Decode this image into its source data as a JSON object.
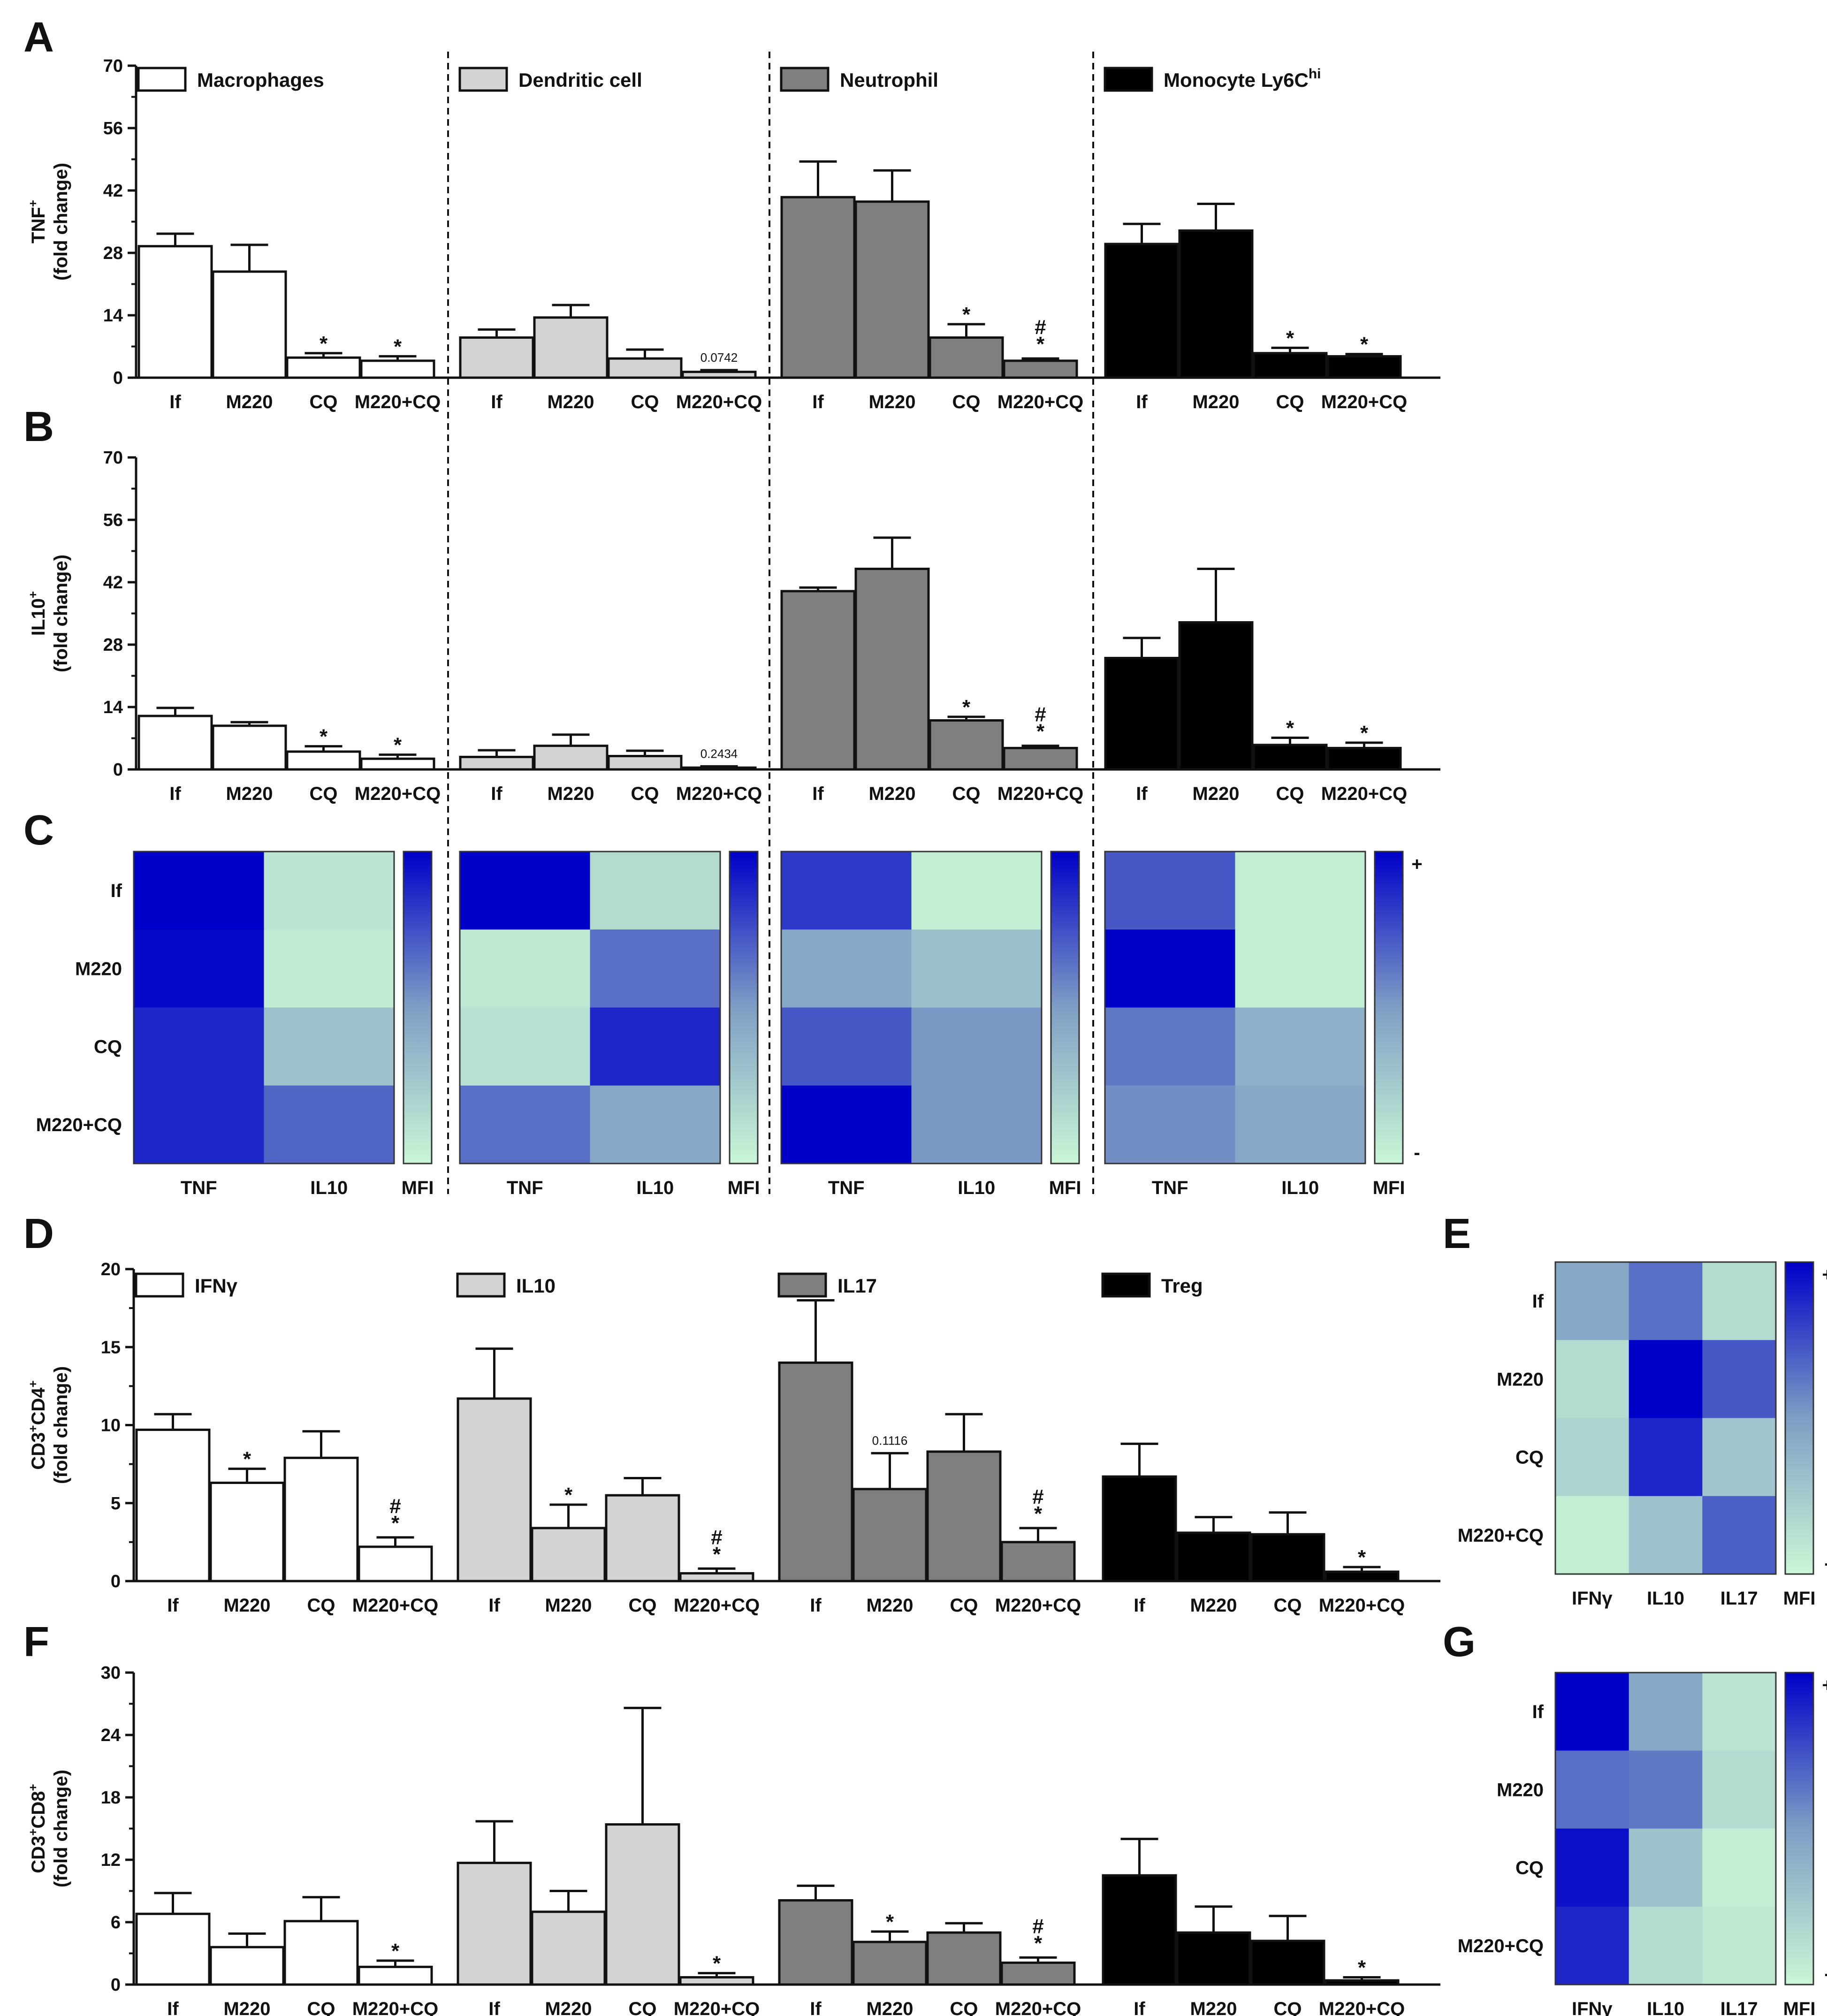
{
  "panel_letters": [
    "A",
    "B",
    "C",
    "D",
    "E",
    "F",
    "G"
  ],
  "groups": [
    "If",
    "M220",
    "CQ",
    "M220+CQ"
  ],
  "colors": {
    "white": "#ffffff",
    "light": "#d3d3d3",
    "gray": "#7f7f7f",
    "black": "#000000",
    "hm_low": "#c9f7d6",
    "hm_mid": "#7f9ec4",
    "hm_high": "#0000c8"
  },
  "chart_data": [
    {
      "id": "A",
      "type": "bar",
      "ylabel_main": "TNF",
      "ylabel_sup": "+",
      "ylabel_sub": "(fold change)",
      "ylim": [
        0,
        70
      ],
      "yticks": [
        0,
        14,
        28,
        42,
        56,
        70
      ],
      "categories": [
        "If",
        "M220",
        "CQ",
        "M220+CQ"
      ],
      "series": [
        {
          "name": "Macrophages",
          "values": [
            29.5,
            23.8,
            4.5,
            3.8
          ],
          "errors": [
            2.8,
            6.0,
            1.0,
            1.0
          ],
          "annotations": [
            "",
            "",
            "*",
            "*"
          ]
        },
        {
          "name": "Dendritic cell",
          "values": [
            9.0,
            13.5,
            4.3,
            1.3
          ],
          "errors": [
            1.8,
            2.8,
            2.0,
            0.4
          ],
          "annotations": [
            "",
            "",
            "",
            "0.0742"
          ]
        },
        {
          "name": "Neutrophil",
          "values": [
            40.5,
            39.5,
            9.0,
            3.8
          ],
          "errors": [
            8.0,
            7.0,
            3.0,
            0.5
          ],
          "annotations": [
            "",
            "",
            "*",
            "#\n*"
          ]
        },
        {
          "name": "Monocyte Ly6C",
          "name_sup": "hi",
          "values": [
            30.0,
            33.0,
            5.5,
            4.8
          ],
          "errors": [
            4.5,
            6.0,
            1.2,
            0.5
          ],
          "annotations": [
            "",
            "",
            "*",
            "*"
          ]
        }
      ]
    },
    {
      "id": "B",
      "type": "bar",
      "ylabel_main": "IL10",
      "ylabel_sup": "+",
      "ylabel_sub": "(fold change)",
      "ylim": [
        0,
        70
      ],
      "yticks": [
        0,
        14,
        28,
        42,
        56,
        70
      ],
      "categories": [
        "If",
        "M220",
        "CQ",
        "M220+CQ"
      ],
      "series": [
        {
          "name": "Macrophages",
          "values": [
            12.0,
            9.8,
            4.0,
            2.4
          ],
          "errors": [
            1.8,
            0.8,
            1.2,
            0.9
          ],
          "annotations": [
            "",
            "",
            "*",
            "*"
          ]
        },
        {
          "name": "Dendritic cell",
          "values": [
            2.8,
            5.3,
            3.0,
            0.4
          ],
          "errors": [
            1.5,
            2.5,
            1.2,
            0.3
          ],
          "annotations": [
            "",
            "",
            "",
            "0.2434"
          ]
        },
        {
          "name": "Neutrophil",
          "values": [
            40.0,
            45.0,
            11.0,
            4.8
          ],
          "errors": [
            0.8,
            7.0,
            0.8,
            0.5
          ],
          "annotations": [
            "",
            "",
            "*",
            "#\n*"
          ]
        },
        {
          "name": "Monocyte Ly6C",
          "name_sup": "hi",
          "values": [
            25.0,
            33.0,
            5.5,
            4.8
          ],
          "errors": [
            4.5,
            12.0,
            1.6,
            1.2
          ],
          "annotations": [
            "",
            "",
            "*",
            "*"
          ]
        }
      ]
    },
    {
      "id": "C",
      "type": "heatmap",
      "rows": [
        "If",
        "M220",
        "CQ",
        "M220+CQ"
      ],
      "cols": [
        "TNF",
        "IL10"
      ],
      "scale_label": "MFI",
      "scale_high": "+",
      "scale_low": "-",
      "matrices": [
        {
          "name": "Macrophages",
          "values": [
            [
              1.0,
              0.1
            ],
            [
              0.97,
              0.06
            ],
            [
              0.88,
              0.3
            ],
            [
              0.88,
              0.68
            ]
          ]
        },
        {
          "name": "Dendritic cell",
          "values": [
            [
              1.0,
              0.15
            ],
            [
              0.08,
              0.65
            ],
            [
              0.12,
              0.88
            ],
            [
              0.65,
              0.45
            ]
          ]
        },
        {
          "name": "Neutrophil",
          "values": [
            [
              0.82,
              0.05
            ],
            [
              0.45,
              0.32
            ],
            [
              0.72,
              0.52
            ],
            [
              1.0,
              0.52
            ]
          ]
        },
        {
          "name": "Monocyte Ly6C",
          "values": [
            [
              0.72,
              0.05
            ],
            [
              1.0,
              0.05
            ],
            [
              0.62,
              0.4
            ],
            [
              0.55,
              0.45
            ]
          ]
        }
      ]
    },
    {
      "id": "D",
      "type": "bar",
      "ylabel_main": "CD3",
      "ylabel_mid": "CD4",
      "ylabel_sup": "+",
      "ylabel_sub": "(fold change)",
      "ylim": [
        0,
        20
      ],
      "yticks": [
        0,
        5,
        10,
        15,
        20
      ],
      "categories": [
        "If",
        "M220",
        "CQ",
        "M220+CQ"
      ],
      "series": [
        {
          "name": "IFNγ",
          "values": [
            9.7,
            6.3,
            7.9,
            2.2
          ],
          "errors": [
            1.0,
            0.9,
            1.7,
            0.6
          ],
          "annotations": [
            "",
            "*",
            "",
            "#\n*"
          ]
        },
        {
          "name": "IL10",
          "values": [
            11.7,
            3.4,
            5.5,
            0.5
          ],
          "errors": [
            3.2,
            1.5,
            1.1,
            0.3
          ],
          "annotations": [
            "",
            "*",
            "",
            "#\n*"
          ]
        },
        {
          "name": "IL17",
          "values": [
            14.0,
            5.9,
            8.3,
            2.5
          ],
          "errors": [
            4.0,
            2.3,
            2.4,
            0.9
          ],
          "annotations": [
            "",
            "0.1116",
            "",
            "#\n*"
          ]
        },
        {
          "name": "Treg",
          "values": [
            6.7,
            3.1,
            3.0,
            0.6
          ],
          "errors": [
            2.1,
            1.0,
            1.4,
            0.3
          ],
          "annotations": [
            "",
            "",
            "",
            "*"
          ]
        }
      ]
    },
    {
      "id": "E",
      "type": "heatmap",
      "rows": [
        "If",
        "M220",
        "CQ",
        "M220+CQ"
      ],
      "cols": [
        "IFNγ",
        "IL10",
        "IL17"
      ],
      "scale_label": "MFI",
      "scale_high": "+",
      "scale_low": "-",
      "matrices": [
        {
          "name": "CD4",
          "values": [
            [
              0.45,
              0.65,
              0.15
            ],
            [
              0.15,
              1.0,
              0.72
            ],
            [
              0.2,
              0.88,
              0.28
            ],
            [
              0.05,
              0.3,
              0.7
            ]
          ]
        }
      ]
    },
    {
      "id": "F",
      "type": "bar",
      "ylabel_main": "CD3",
      "ylabel_mid": "CD8",
      "ylabel_sup": "+",
      "ylabel_sub": "(fold change)",
      "ylim": [
        0,
        30
      ],
      "yticks": [
        0,
        6,
        12,
        18,
        24,
        30
      ],
      "categories": [
        "If",
        "M220",
        "CQ",
        "M220+CQ"
      ],
      "series": [
        {
          "name": "IFNγ",
          "values": [
            6.8,
            3.6,
            6.1,
            1.7
          ],
          "errors": [
            2.0,
            1.3,
            2.3,
            0.6
          ],
          "annotations": [
            "",
            "",
            "",
            "*"
          ]
        },
        {
          "name": "IL10",
          "values": [
            11.7,
            7.0,
            15.4,
            0.7
          ],
          "errors": [
            4.0,
            2.0,
            11.2,
            0.4
          ],
          "annotations": [
            "",
            "",
            "",
            "*"
          ]
        },
        {
          "name": "IL17",
          "values": [
            8.1,
            4.1,
            5.0,
            2.1
          ],
          "errors": [
            1.4,
            1.0,
            0.9,
            0.5
          ],
          "annotations": [
            "",
            "*",
            "",
            "#\n*"
          ]
        },
        {
          "name": "Treg",
          "values": [
            10.5,
            5.0,
            4.2,
            0.4
          ],
          "errors": [
            3.5,
            2.5,
            2.4,
            0.3
          ],
          "annotations": [
            "",
            "",
            "",
            "*"
          ]
        }
      ]
    },
    {
      "id": "G",
      "type": "heatmap",
      "rows": [
        "If",
        "M220",
        "CQ",
        "M220+CQ"
      ],
      "cols": [
        "IFNγ",
        "IL10",
        "IL17"
      ],
      "scale_label": "MFI",
      "scale_high": "+",
      "scale_low": "-",
      "matrices": [
        {
          "name": "CD8",
          "values": [
            [
              1.0,
              0.45,
              0.1
            ],
            [
              0.65,
              0.62,
              0.15
            ],
            [
              0.95,
              0.3,
              0.05
            ],
            [
              0.88,
              0.15,
              0.08
            ]
          ]
        }
      ]
    }
  ]
}
